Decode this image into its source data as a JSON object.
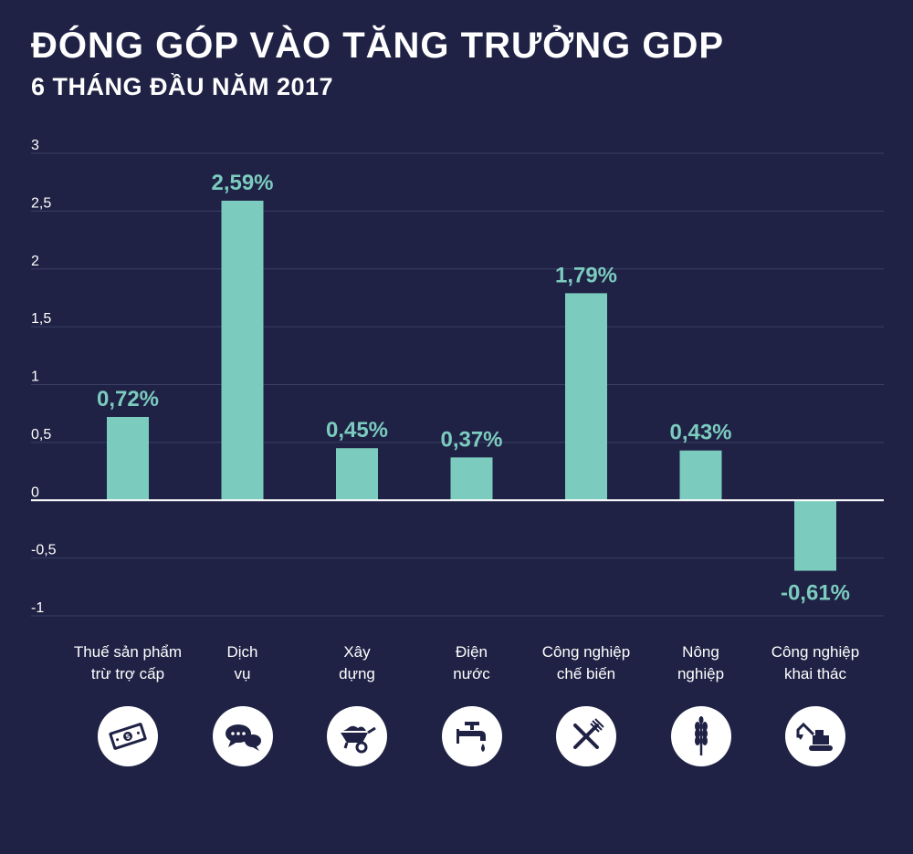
{
  "title": "ĐÓNG GÓP VÀO TĂNG TRƯỞNG GDP",
  "subtitle": "6 THÁNG ĐẦU NĂM 2017",
  "colors": {
    "background": "#1f2244",
    "bar": "#7ccbbf",
    "grid": "#3a3f66",
    "zero_line": "#ffffff",
    "label": "#7ccbbf"
  },
  "chart_data": {
    "type": "bar",
    "categories": [
      [
        "Thuế sản phẩm",
        "trừ trợ cấp"
      ],
      [
        "Dịch",
        "vụ"
      ],
      [
        "Xây",
        "dựng"
      ],
      [
        "Điện",
        "nước"
      ],
      [
        "Công nghiệp",
        "chế biến"
      ],
      [
        "Nông",
        "nghiệp"
      ],
      [
        "Công nghiệp",
        "khai thác"
      ]
    ],
    "values": [
      0.72,
      2.59,
      0.45,
      0.37,
      1.79,
      0.43,
      -0.61
    ],
    "value_labels": [
      "0,72%",
      "2,59%",
      "0,45%",
      "0,37%",
      "1,79%",
      "0,43%",
      "-0,61%"
    ],
    "yticks": [
      3,
      2.5,
      2,
      1.5,
      1,
      0.5,
      0,
      -0.5,
      -1
    ],
    "ytick_labels": [
      "3",
      "2,5",
      "2",
      "1,5",
      "1",
      "0,5",
      "0",
      "-0,5",
      "-1"
    ],
    "ylim": [
      -1,
      3
    ],
    "grid": true,
    "icons": [
      "money-icon",
      "chat-bubbles-icon",
      "wheelbarrow-icon",
      "faucet-icon",
      "fork-knife-icon",
      "wheat-icon",
      "excavator-icon"
    ]
  }
}
